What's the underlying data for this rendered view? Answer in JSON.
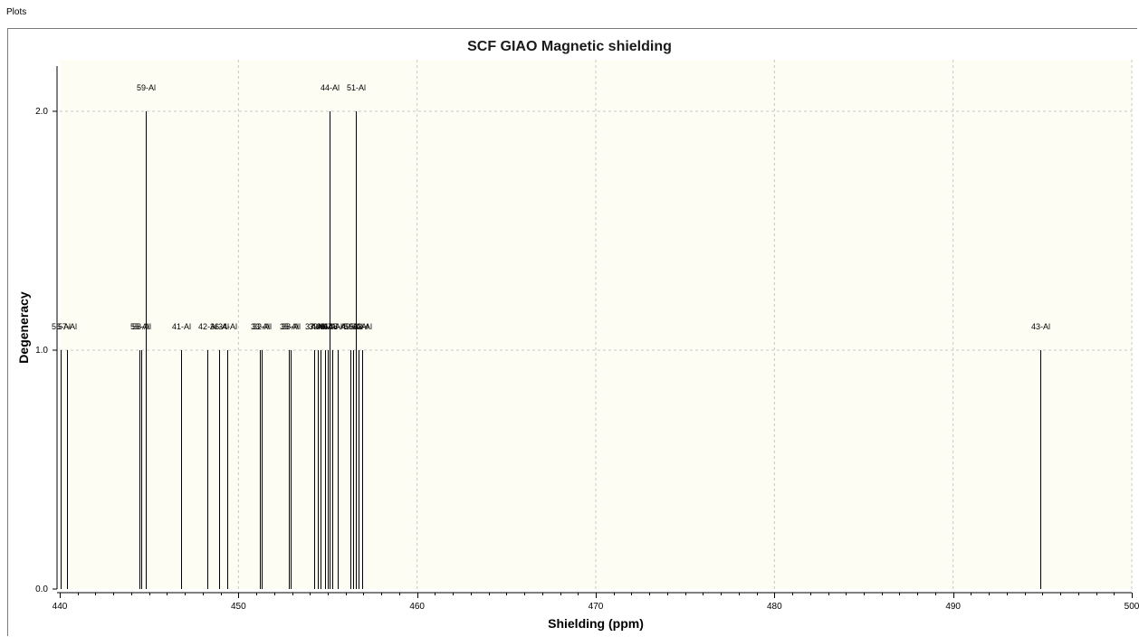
{
  "window": {
    "title": "Plots"
  },
  "colors": {
    "plot_background": "#fdfdf3",
    "line": "#000000",
    "grid": "#c8c8c8"
  },
  "chart_data": {
    "type": "bar",
    "title": "SCF GIAO Magnetic shielding",
    "xlabel": "Shielding (ppm)",
    "ylabel": "Degeneracy",
    "xlim": [
      440,
      500
    ],
    "ylim": [
      0,
      2.1
    ],
    "x_ticks": [
      440,
      450,
      460,
      470,
      480,
      490,
      500
    ],
    "y_ticks": [
      "0.0",
      "1.0",
      "2.0"
    ],
    "grid": true,
    "peaks": [
      {
        "x": 440.05,
        "y": 1,
        "label": "56-Al"
      },
      {
        "x": 440.4,
        "y": 1,
        "label": "57-Al"
      },
      {
        "x": 444.45,
        "y": 1,
        "label": "55-Al"
      },
      {
        "x": 444.55,
        "y": 1,
        "label": "58-Al"
      },
      {
        "x": 444.8,
        "y": 2,
        "label": "59-Al"
      },
      {
        "x": 446.8,
        "y": 1,
        "label": "41-Al"
      },
      {
        "x": 448.25,
        "y": 1,
        "label": "42-Al"
      },
      {
        "x": 448.9,
        "y": 1,
        "label": "36-Al"
      },
      {
        "x": 449.35,
        "y": 1,
        "label": "34-Al"
      },
      {
        "x": 451.2,
        "y": 1,
        "label": "33-Al"
      },
      {
        "x": 451.3,
        "y": 1,
        "label": "32-Al"
      },
      {
        "x": 452.8,
        "y": 1,
        "label": "35-Al"
      },
      {
        "x": 452.9,
        "y": 1,
        "label": "38-Al"
      },
      {
        "x": 454.25,
        "y": 1,
        "label": "37-Al"
      },
      {
        "x": 454.45,
        "y": 1,
        "label": "39-Al"
      },
      {
        "x": 454.6,
        "y": 1,
        "label": "40-Al"
      },
      {
        "x": 454.85,
        "y": 1,
        "label": "45-Al"
      },
      {
        "x": 455.0,
        "y": 1,
        "label": "46-Al"
      },
      {
        "x": 455.1,
        "y": 2,
        "label": "44-Al"
      },
      {
        "x": 455.25,
        "y": 1,
        "label": "47-Al"
      },
      {
        "x": 455.55,
        "y": 1,
        "label": "48-Al"
      },
      {
        "x": 456.25,
        "y": 1,
        "label": "49-Al"
      },
      {
        "x": 456.4,
        "y": 1,
        "label": "50-Al"
      },
      {
        "x": 456.55,
        "y": 2,
        "label": "51-Al"
      },
      {
        "x": 456.7,
        "y": 1,
        "label": "52-Al"
      },
      {
        "x": 456.95,
        "y": 1,
        "label": "53-Al"
      },
      {
        "x": 494.9,
        "y": 1,
        "label": "43-Al"
      }
    ]
  }
}
